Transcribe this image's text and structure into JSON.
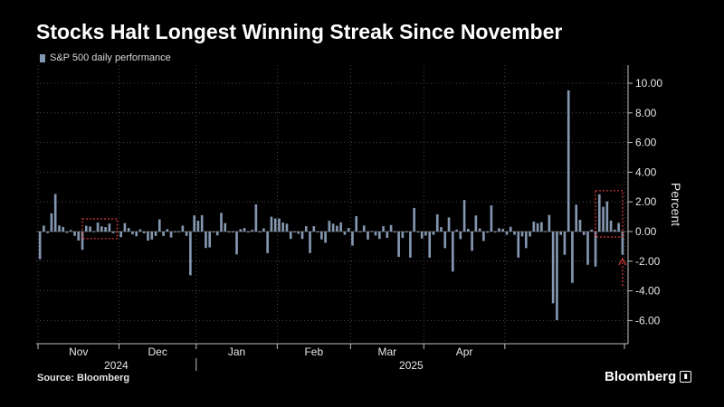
{
  "header": {
    "title": "Stocks Halt Longest Winning Streak Since November"
  },
  "footer": {
    "source": "Source: Bloomberg",
    "brand": "Bloomberg"
  },
  "colors": {
    "bar": "#8497b0",
    "highlight": "#e03b3b",
    "gridline": "#5a5a5a",
    "zeroline": "#6e6e6e",
    "background": "#000000"
  },
  "chart_data": {
    "type": "bar",
    "title": "Stocks Halt Longest Winning Streak Since November",
    "ylabel": "Percent",
    "ylim": [
      -7.5,
      11.0
    ],
    "yticks": [
      10,
      8,
      6,
      4,
      2,
      0,
      -2,
      -4,
      -6
    ],
    "ytick_labels": [
      "10.00",
      "8.00",
      "6.00",
      "4.00",
      "2.00",
      "0.00",
      "-2.00",
      "-4.00",
      "-6.00"
    ],
    "grid": true,
    "legend_position": "top-left",
    "month_labels": [
      "Nov",
      "Dec",
      "Jan",
      "Feb",
      "Mar",
      "Apr"
    ],
    "year_labels": [
      "2024",
      "2025"
    ],
    "series": [
      {
        "name": "S&P 500 daily performance",
        "values": [
          -1.86,
          0.4,
          -0.1,
          1.23,
          2.53,
          0.41,
          0.31,
          -0.09,
          0.1,
          -0.29,
          -0.61,
          -1.23,
          0.39,
          0.34,
          0.02,
          0.61,
          0.35,
          0.3,
          0.54,
          -0.11,
          -0.05,
          -0.38,
          0.57,
          0.24,
          -0.19,
          -0.32,
          0.15,
          -0.12,
          -0.61,
          -0.54,
          -0.3,
          0.82,
          -0.3,
          0.16,
          -0.4,
          -0.06,
          0.01,
          0.4,
          -0.29,
          -2.95,
          1.09,
          0.73,
          1.1,
          -1.11,
          -1.07,
          -0.04,
          -0.26,
          1.26,
          0.57,
          -0.05,
          -0.03,
          -1.54,
          0.16,
          0.24,
          -0.04,
          0.11,
          1.83,
          -0.01,
          0.22,
          -1.46,
          1.0,
          0.88,
          0.88,
          0.61,
          0.53,
          -0.5,
          0.0,
          -0.15,
          -0.5,
          0.36,
          -1.45,
          0.36,
          0.0,
          -0.53,
          -0.76,
          0.72,
          0.53,
          0.39,
          0.61,
          -0.22,
          0.24,
          -0.95,
          1.04,
          0.0,
          0.41,
          -0.54,
          0.04,
          -0.27,
          -0.5,
          0.36,
          -0.43,
          0.44,
          0.0,
          -1.71,
          -0.43,
          0.0,
          -1.76,
          1.59,
          0.0,
          -0.47,
          -0.27,
          -1.76,
          -0.22,
          1.16,
          0.3,
          -1.12,
          0.95,
          -2.7,
          0.13,
          -0.51,
          2.13,
          0.18,
          -1.3,
          1.08,
          0.21,
          -0.64,
          -0.08,
          1.76,
          -0.05,
          0.22,
          0.18,
          -0.22,
          0.32,
          -0.22,
          -1.76,
          -0.33,
          -1.12,
          -0.33,
          0.67,
          0.56,
          0.64,
          0.02,
          1.12,
          -4.84,
          -5.97,
          -0.23,
          -1.57,
          9.52,
          -3.46,
          1.81,
          0.79,
          -0.24,
          -2.24,
          0.13,
          -2.36,
          2.51,
          1.67,
          2.03,
          0.74,
          0.13,
          0.58,
          -1.57
        ]
      }
    ],
    "highlighted_ranges": [
      [
        12,
        19
      ],
      [
        145,
        150
      ]
    ],
    "annotation": "arrow pointing up at final bar"
  }
}
